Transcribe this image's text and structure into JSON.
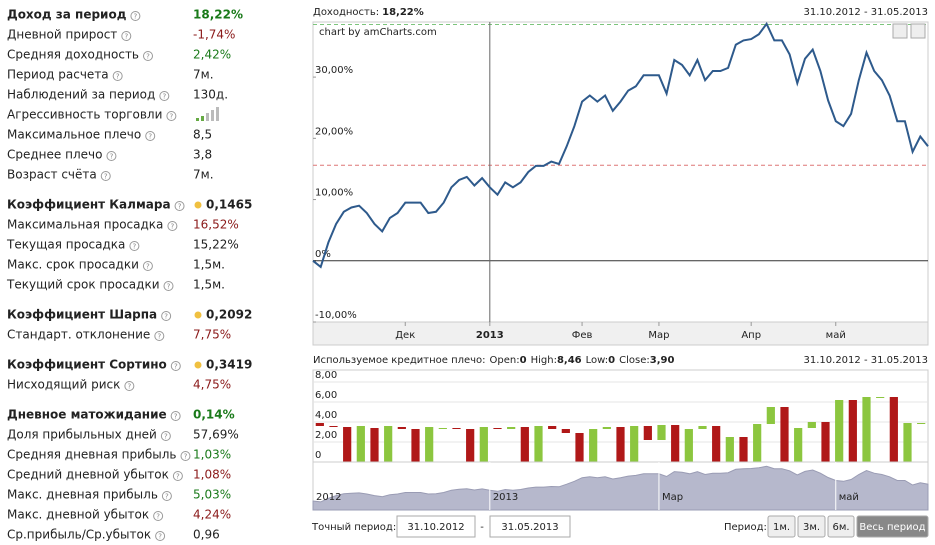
{
  "stats": [
    {
      "label": "Доход за период",
      "value": "18,22%",
      "heading": true,
      "color": "#1a7a1a"
    },
    {
      "label": "Дневной прирост",
      "value": "-1,74%",
      "color": "#8b1a1a"
    },
    {
      "label": "Средняя доходность",
      "value": "2,42%",
      "color": "#1a7a1a"
    },
    {
      "label": "Период расчета",
      "value": "7м."
    },
    {
      "label": "Наблюдений за период",
      "value": "130д."
    },
    {
      "label": "Агрессивность торговли",
      "value": null
    },
    {
      "label": "Максимальное плечо",
      "value": "8,5"
    },
    {
      "label": "Среднее плечо",
      "value": "3,8"
    },
    {
      "label": "Возраст счёта",
      "value": "7м."
    },
    {
      "label": "Коэффициент Калмара",
      "value": "0,1465",
      "heading": true,
      "dot": "#f0c040"
    },
    {
      "label": "Максимальная просадка",
      "value": "16,52%",
      "color": "#8b1a1a"
    },
    {
      "label": "Текущая просадка",
      "value": "15,22%"
    },
    {
      "label": "Макс. срок просадки",
      "value": "1,5м."
    },
    {
      "label": "Текущий срок просадки",
      "value": "1,5м."
    },
    {
      "label": "Коэффициент Шарпа",
      "value": "0,2092",
      "heading": true,
      "dot": "#f0c040"
    },
    {
      "label": "Стандарт. отклонение",
      "value": "7,75%",
      "color": "#8b1a1a"
    },
    {
      "label": "Коэффициент Сортино",
      "value": "0,3419",
      "heading": true,
      "dot": "#f0c040"
    },
    {
      "label": "Нисходящий риск",
      "value": "4,75%",
      "color": "#8b1a1a"
    },
    {
      "label": "Дневное матожидание",
      "value": "0,14%",
      "heading": true,
      "color": "#1a7a1a"
    },
    {
      "label": "Доля прибыльных дней",
      "value": "57,69%"
    },
    {
      "label": "Средняя дневная прибыль",
      "value": "1,03%",
      "color": "#1a7a1a"
    },
    {
      "label": "Средний дневной убыток",
      "value": "1,08%",
      "color": "#8b1a1a"
    },
    {
      "label": "Макс. дневная прибыль",
      "value": "5,03%",
      "color": "#1a7a1a"
    },
    {
      "label": "Макс. дневной убыток",
      "value": "4,24%",
      "color": "#8b1a1a"
    },
    {
      "label": "Ср.прибыль/Ср.убыток",
      "value": "0,96"
    }
  ],
  "help_icon": "?",
  "chart_data": [
    {
      "type": "line",
      "title": "Доходность:",
      "title_value": "18,22%",
      "date_range": "31.10.2012 - 31.05.2013",
      "credit": "chart by amCharts.com",
      "color": "#2e5a8c",
      "categories": [
        null,
        null,
        null,
        null,
        null,
        null,
        null,
        null,
        null,
        null,
        null,
        null,
        "Дек",
        null,
        null,
        null,
        null,
        null,
        null,
        null,
        null,
        null,
        null,
        "2013",
        null,
        null,
        null,
        null,
        null,
        null,
        null,
        null,
        null,
        null,
        null,
        "Фев",
        null,
        null,
        null,
        null,
        null,
        null,
        null,
        null,
        null,
        "Мар",
        null,
        null,
        null,
        null,
        null,
        null,
        null,
        null,
        null,
        null,
        null,
        "Апр",
        null,
        null,
        null,
        null,
        null,
        null,
        null,
        null,
        null,
        null,
        "май",
        null,
        null,
        null,
        null,
        null,
        null,
        null,
        null,
        null,
        null,
        null,
        null
      ],
      "values": [
        0,
        -1,
        3,
        6,
        8,
        8.7,
        9,
        7.8,
        6,
        4.8,
        7,
        7.8,
        9.5,
        9.5,
        9.5,
        7.8,
        8,
        9.5,
        12,
        13.2,
        13.7,
        12.3,
        13.5,
        12,
        10.8,
        12.8,
        12,
        12.8,
        14.5,
        15.5,
        15.5,
        16.2,
        15.8,
        18.7,
        22,
        26,
        27,
        26,
        27,
        24.5,
        26,
        27.8,
        28.5,
        30.3,
        30.3,
        30.3,
        27.3,
        32.8,
        32,
        30.3,
        32.8,
        29.5,
        31,
        31,
        31.5,
        35.3,
        36,
        36.2,
        37,
        38.7,
        36,
        36,
        33.7,
        29,
        33,
        34.5,
        31,
        26.2,
        22.8,
        22,
        24,
        29.5,
        34,
        31,
        29.5,
        27,
        22.8,
        22.8,
        17.8,
        20.3,
        18.7
      ],
      "ylim": [
        -10,
        39
      ],
      "yticks": [
        {
          "value": -10,
          "label": "-10,00%"
        },
        {
          "value": 0,
          "label": "0%"
        },
        {
          "value": 10,
          "label": "10,00%"
        },
        {
          "value": 20,
          "label": "20,00%"
        },
        {
          "value": 30,
          "label": "30,00%"
        }
      ],
      "reference_lines": [
        {
          "value": 38.6,
          "color": "#7cc47c"
        },
        {
          "value": 15.6,
          "color": "#d77"
        }
      ]
    },
    {
      "type": "candlestick",
      "title": "Используемое кредитное плечо:",
      "date_range": "31.10.2012 - 31.05.2013",
      "summary": [
        {
          "name": "Open:",
          "value": "0"
        },
        {
          "name": "High:",
          "value": "8,46"
        },
        {
          "name": "Low:",
          "value": "0"
        },
        {
          "name": "Close:",
          "value": "3,90"
        }
      ],
      "up_color": "#8cc63f",
      "down_color": "#b01818",
      "open": [
        3.9,
        3.6,
        3.5,
        0,
        3.4,
        0,
        3.5,
        3.3,
        0,
        3.3,
        3.4,
        3.3,
        0,
        3.4,
        3.3,
        3.5,
        0,
        3.6,
        3.3,
        2.9,
        0,
        3.3,
        3.5,
        0,
        3.6,
        2.2,
        3.7,
        0,
        3.3,
        3.6,
        0,
        2.5,
        0,
        3.8,
        5.5,
        0,
        3.4,
        4,
        0,
        6.2,
        0,
        6.5,
        6.5,
        0,
        3.9
      ],
      "close": [
        3.6,
        3.5,
        0,
        3.6,
        0,
        3.6,
        3.3,
        0,
        3.5,
        3.4,
        3.3,
        0,
        3.5,
        3.3,
        3.5,
        0,
        3.6,
        3.3,
        2.9,
        0,
        3.3,
        3.5,
        0,
        3.6,
        2.2,
        3.7,
        0,
        3.3,
        3.6,
        0,
        2.5,
        0,
        3.8,
        5.5,
        0,
        3.4,
        4,
        0,
        6.2,
        0,
        6.5,
        6.5,
        0,
        3.9,
        3.9
      ],
      "ylim": [
        0,
        9
      ],
      "yticks": [
        0,
        {
          "value": 2,
          "label": "2,00"
        },
        {
          "value": 4,
          "label": "4,00"
        },
        {
          "value": 6,
          "label": "6,00"
        },
        {
          "value": 8,
          "label": "8,00"
        }
      ],
      "navigator_labels": [
        {
          "index": 0,
          "label": "2012"
        },
        {
          "index": 23,
          "label": "2013"
        },
        {
          "index": 45,
          "label": "Мар"
        },
        {
          "index": 68,
          "label": "май"
        }
      ]
    }
  ],
  "controls": {
    "exact_label": "Точный период:",
    "from": "31.10.2012",
    "separator": "-",
    "to": "31.05.2013",
    "period_label": "Период:",
    "buttons": [
      "1м.",
      "3м.",
      "6м.",
      "Весь период"
    ],
    "active": 3
  }
}
